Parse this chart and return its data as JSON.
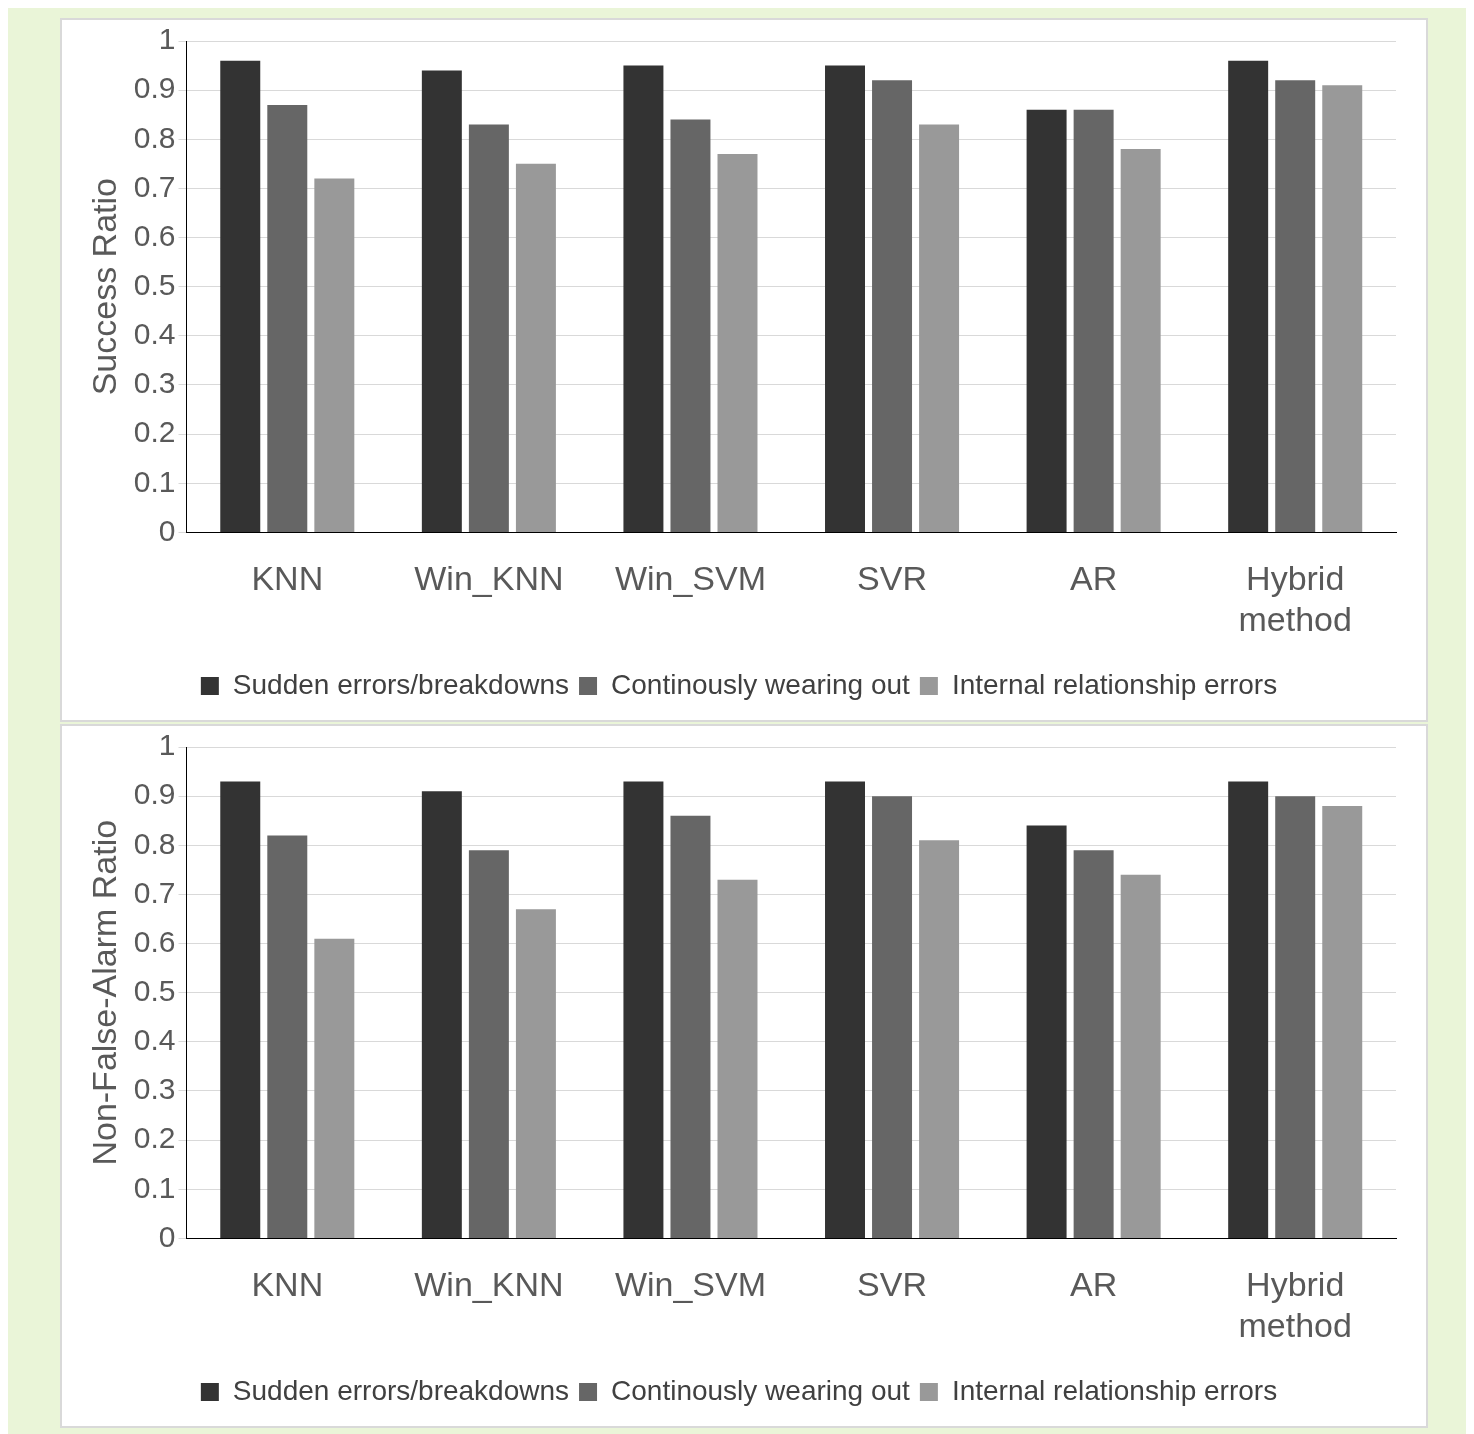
{
  "chart_data": [
    {
      "type": "bar",
      "ylabel": "Success Ratio",
      "categories": [
        "KNN",
        "Win_KNN",
        "Win_SVM",
        "SVR",
        "AR",
        "Hybrid method"
      ],
      "series": [
        {
          "name": "Sudden errors/breakdowns",
          "color": "#333333",
          "values": [
            0.96,
            0.94,
            0.95,
            0.95,
            0.86,
            0.96
          ]
        },
        {
          "name": "Continously wearing out",
          "color": "#666666",
          "values": [
            0.87,
            0.83,
            0.84,
            0.92,
            0.86,
            0.92
          ]
        },
        {
          "name": "Internal relationship errors",
          "color": "#999999",
          "values": [
            0.72,
            0.75,
            0.77,
            0.83,
            0.78,
            0.91
          ]
        }
      ],
      "ylim": [
        0,
        1
      ],
      "yticks": [
        0,
        0.1,
        0.2,
        0.3,
        0.4,
        0.5,
        0.6,
        0.7,
        0.8,
        0.9,
        1
      ],
      "grid": "y",
      "legend": "bottom"
    },
    {
      "type": "bar",
      "ylabel": "Non-False-Alarm Ratio",
      "categories": [
        "KNN",
        "Win_KNN",
        "Win_SVM",
        "SVR",
        "AR",
        "Hybrid method"
      ],
      "series": [
        {
          "name": "Sudden errors/breakdowns",
          "color": "#333333",
          "values": [
            0.93,
            0.91,
            0.93,
            0.93,
            0.84,
            0.93
          ]
        },
        {
          "name": "Continously wearing out",
          "color": "#666666",
          "values": [
            0.82,
            0.79,
            0.86,
            0.9,
            0.79,
            0.9
          ]
        },
        {
          "name": "Internal relationship errors",
          "color": "#999999",
          "values": [
            0.61,
            0.67,
            0.73,
            0.81,
            0.74,
            0.88
          ]
        }
      ],
      "ylim": [
        0,
        1
      ],
      "yticks": [
        0,
        0.1,
        0.2,
        0.3,
        0.4,
        0.5,
        0.6,
        0.7,
        0.8,
        0.9,
        1
      ],
      "grid": "y",
      "legend": "bottom"
    }
  ]
}
